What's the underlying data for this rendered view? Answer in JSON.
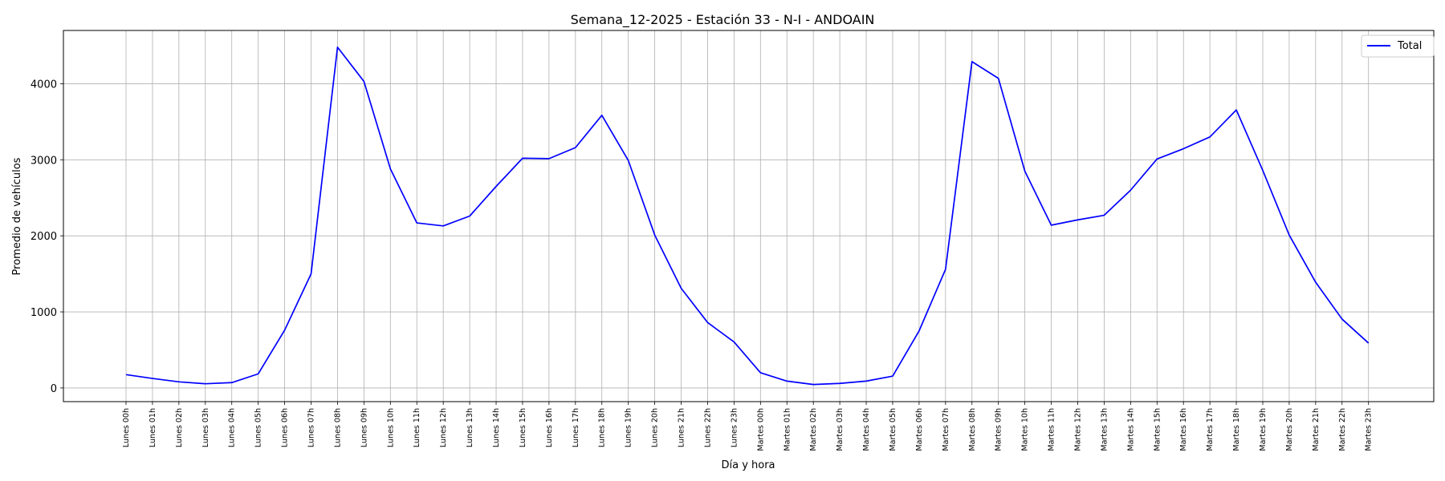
{
  "chart_data": {
    "type": "line",
    "title": "Semana_12-2025 - Estación 33 - N-I  - ANDOAIN",
    "xlabel": "Día y hora",
    "ylabel": "Promedio de vehículos",
    "categories": [
      "Lunes 00h",
      "Lunes 01h",
      "Lunes 02h",
      "Lunes 03h",
      "Lunes 04h",
      "Lunes 05h",
      "Lunes 06h",
      "Lunes 07h",
      "Lunes 08h",
      "Lunes 09h",
      "Lunes 10h",
      "Lunes 11h",
      "Lunes 12h",
      "Lunes 13h",
      "Lunes 14h",
      "Lunes 15h",
      "Lunes 16h",
      "Lunes 17h",
      "Lunes 18h",
      "Lunes 19h",
      "Lunes 20h",
      "Lunes 21h",
      "Lunes 22h",
      "Lunes 23h",
      "Martes 00h",
      "Martes 01h",
      "Martes 02h",
      "Martes 03h",
      "Martes 04h",
      "Martes 05h",
      "Martes 06h",
      "Martes 07h",
      "Martes 08h",
      "Martes 09h",
      "Martes 10h",
      "Martes 11h",
      "Martes 12h",
      "Martes 13h",
      "Martes 14h",
      "Martes 15h",
      "Martes 16h",
      "Martes 17h",
      "Martes 18h",
      "Martes 19h",
      "Martes 20h",
      "Martes 21h",
      "Martes 22h",
      "Martes 23h"
    ],
    "series": [
      {
        "name": "Total",
        "color": "#0000ff",
        "values": [
          175,
          125,
          80,
          55,
          70,
          185,
          760,
          1500,
          4480,
          4030,
          2880,
          2170,
          2130,
          2260,
          2650,
          3020,
          3015,
          3160,
          3585,
          2990,
          2010,
          1310,
          860,
          605,
          200,
          90,
          45,
          60,
          90,
          155,
          750,
          1560,
          4290,
          4070,
          2850,
          2140,
          2210,
          2270,
          2600,
          3010,
          3145,
          3300,
          3655,
          2860,
          2010,
          1390,
          905,
          590
        ]
      }
    ],
    "yticks": [
      0,
      1000,
      2000,
      3000,
      4000
    ],
    "ylim": [
      -180,
      4700
    ],
    "grid": true,
    "legend": "top-right"
  }
}
